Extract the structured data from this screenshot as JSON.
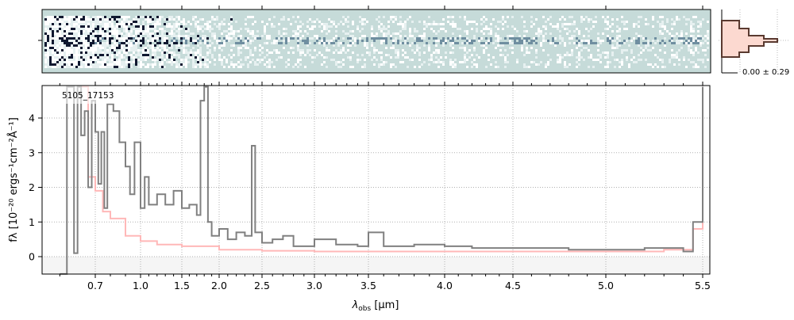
{
  "chart_data": {
    "type": "line",
    "title": "",
    "label": "5105_17153",
    "xlabel": "λobs [μm]",
    "xlabel_parts": {
      "lambda": "λ",
      "sub": "obs",
      "unit": " [μm]"
    },
    "ylabel": "fλ [10^-20 ergs^-1 cm^-2 Å^-1]",
    "ylabel_text": "fλ [10⁻²⁰ ergs⁻¹cm⁻²Å⁻¹]",
    "xticks": [
      "0.7",
      "1.0",
      "1.5",
      "2.0",
      "2.5",
      "3.0",
      "3.5",
      "4.0",
      "4.5",
      "5.0",
      "5.5"
    ],
    "yticks": [
      "0",
      "1",
      "2",
      "3",
      "4"
    ],
    "ylim": [
      -0.5,
      4.94
    ],
    "grid": true,
    "series": [
      {
        "name": "flux",
        "color": "#808080",
        "x": [
          0.6,
          0.62,
          0.64,
          0.65,
          0.66,
          0.67,
          0.68,
          0.69,
          0.7,
          0.72,
          0.74,
          0.76,
          0.78,
          0.82,
          0.86,
          0.9,
          0.93,
          0.96,
          1.0,
          1.05,
          1.1,
          1.2,
          1.3,
          1.4,
          1.5,
          1.6,
          1.7,
          1.75,
          1.8,
          1.85,
          1.9,
          2.0,
          2.1,
          2.2,
          2.3,
          2.38,
          2.42,
          2.5,
          2.6,
          2.7,
          2.8,
          3.0,
          3.2,
          3.4,
          3.5,
          3.6,
          3.8,
          4.0,
          4.2,
          4.5,
          4.8,
          5.0,
          5.2,
          5.3,
          5.4,
          5.45,
          5.5
        ],
        "y": [
          -0.5,
          4.9,
          0.1,
          4.9,
          3.5,
          4.2,
          2.0,
          4.5,
          3.6,
          2.1,
          3.6,
          1.4,
          4.4,
          4.2,
          3.3,
          2.6,
          1.8,
          3.3,
          1.4,
          2.3,
          1.5,
          1.8,
          1.5,
          1.9,
          1.4,
          1.5,
          1.2,
          4.5,
          4.9,
          1.0,
          0.6,
          0.8,
          0.5,
          0.7,
          0.6,
          3.2,
          0.7,
          0.4,
          0.5,
          0.6,
          0.3,
          0.5,
          0.35,
          0.3,
          0.7,
          0.3,
          0.35,
          0.3,
          0.25,
          0.25,
          0.2,
          0.2,
          0.25,
          0.25,
          0.15,
          1.0,
          4.9
        ]
      },
      {
        "name": "error",
        "color": "#ffb8b8",
        "x": [
          0.65,
          0.68,
          0.7,
          0.75,
          0.8,
          0.9,
          1.0,
          1.2,
          1.5,
          2.0,
          2.5,
          3.0,
          4.0,
          5.0,
          5.3,
          5.45,
          5.5
        ],
        "y": [
          4.9,
          2.3,
          1.9,
          1.3,
          1.1,
          0.6,
          0.45,
          0.35,
          0.3,
          0.2,
          0.17,
          0.15,
          0.15,
          0.15,
          0.2,
          0.8,
          4.9
        ]
      }
    ],
    "histogram_label": "0.00 ± 0.29"
  }
}
